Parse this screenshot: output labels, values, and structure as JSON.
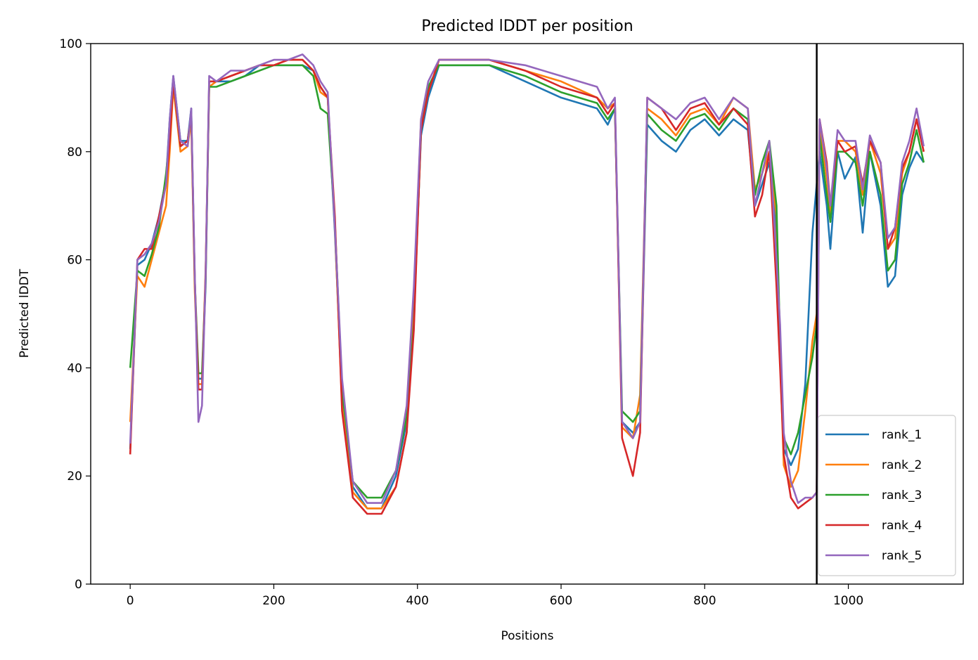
{
  "chart_data": {
    "type": "line",
    "title": "Predicted lDDT per position",
    "xlabel": "Positions",
    "ylabel": "Predicted lDDT",
    "xlim": [
      -55,
      1160
    ],
    "ylim": [
      0,
      100
    ],
    "xticks": [
      0,
      200,
      400,
      600,
      800,
      1000
    ],
    "yticks": [
      0,
      20,
      40,
      60,
      80,
      100
    ],
    "grid": false,
    "legend_position": "lower-right",
    "vertical_line_x": 956,
    "series": [
      {
        "name": "rank_1",
        "color": "#1f77b4",
        "x": [
          0,
          10,
          20,
          30,
          40,
          50,
          55,
          60,
          70,
          80,
          85,
          90,
          95,
          100,
          105,
          110,
          120,
          140,
          160,
          180,
          200,
          220,
          240,
          255,
          265,
          275,
          285,
          295,
          310,
          330,
          350,
          370,
          385,
          395,
          405,
          415,
          430,
          450,
          500,
          550,
          600,
          650,
          665,
          675,
          685,
          700,
          710,
          720,
          740,
          760,
          780,
          800,
          820,
          840,
          860,
          870,
          880,
          890,
          900,
          905,
          910,
          920,
          930,
          940,
          950,
          956,
          960,
          970,
          975,
          985,
          995,
          1010,
          1020,
          1030,
          1045,
          1055,
          1065,
          1075,
          1085,
          1095,
          1105
        ],
        "y": [
          25,
          59,
          60,
          63,
          68,
          75,
          86,
          94,
          82,
          82,
          88,
          55,
          38,
          38,
          55,
          93,
          93,
          93,
          94,
          96,
          96,
          96,
          96,
          95,
          92,
          90,
          65,
          35,
          18,
          14,
          14,
          20,
          30,
          50,
          83,
          90,
          96,
          96,
          96,
          93,
          90,
          88,
          85,
          88,
          30,
          28,
          30,
          85,
          82,
          80,
          84,
          86,
          83,
          86,
          84,
          70,
          74,
          78,
          65,
          45,
          25,
          22,
          25,
          37,
          65,
          74,
          80,
          70,
          62,
          80,
          75,
          79,
          65,
          80,
          70,
          55,
          57,
          72,
          77,
          80,
          78
        ]
      },
      {
        "name": "rank_2",
        "color": "#ff7f0e",
        "x": [
          0,
          10,
          20,
          30,
          40,
          50,
          55,
          60,
          70,
          80,
          85,
          90,
          95,
          100,
          105,
          110,
          120,
          140,
          160,
          180,
          200,
          220,
          240,
          255,
          265,
          275,
          285,
          295,
          310,
          330,
          350,
          370,
          385,
          395,
          405,
          415,
          430,
          450,
          500,
          550,
          600,
          650,
          665,
          675,
          685,
          700,
          710,
          720,
          740,
          760,
          780,
          800,
          820,
          840,
          860,
          870,
          880,
          890,
          900,
          905,
          910,
          920,
          930,
          940,
          950,
          956,
          960,
          970,
          975,
          985,
          995,
          1010,
          1020,
          1030,
          1045,
          1055,
          1065,
          1075,
          1085,
          1095,
          1105
        ],
        "y": [
          30,
          57,
          55,
          60,
          65,
          70,
          80,
          92,
          80,
          81,
          86,
          54,
          37,
          37,
          58,
          92,
          93,
          94,
          95,
          96,
          96,
          97,
          97,
          95,
          91,
          90,
          66,
          33,
          17,
          14,
          14,
          18,
          28,
          52,
          86,
          91,
          97,
          97,
          97,
          95,
          93,
          90,
          88,
          89,
          29,
          27,
          35,
          88,
          86,
          83,
          87,
          88,
          85,
          90,
          88,
          73,
          76,
          80,
          68,
          42,
          22,
          18,
          21,
          32,
          45,
          50,
          85,
          75,
          68,
          82,
          82,
          80,
          72,
          82,
          76,
          62,
          64,
          76,
          80,
          86,
          80
        ]
      },
      {
        "name": "rank_3",
        "color": "#2ca02c",
        "x": [
          0,
          10,
          20,
          30,
          40,
          50,
          55,
          60,
          70,
          80,
          85,
          90,
          95,
          100,
          105,
          110,
          120,
          140,
          160,
          180,
          200,
          220,
          240,
          255,
          265,
          275,
          285,
          295,
          310,
          330,
          350,
          370,
          385,
          395,
          405,
          415,
          430,
          450,
          500,
          550,
          600,
          650,
          665,
          675,
          685,
          700,
          710,
          720,
          740,
          760,
          780,
          800,
          820,
          840,
          860,
          870,
          880,
          890,
          900,
          905,
          910,
          920,
          930,
          940,
          950,
          956,
          960,
          970,
          975,
          985,
          995,
          1010,
          1020,
          1030,
          1045,
          1055,
          1065,
          1075,
          1085,
          1095,
          1105
        ],
        "y": [
          40,
          58,
          57,
          61,
          66,
          76,
          83,
          93,
          81,
          82,
          87,
          56,
          39,
          39,
          56,
          92,
          92,
          93,
          94,
          95,
          96,
          96,
          96,
          94,
          88,
          87,
          67,
          36,
          19,
          16,
          16,
          21,
          31,
          48,
          84,
          92,
          96,
          96,
          96,
          94,
          91,
          89,
          86,
          88,
          32,
          30,
          32,
          87,
          84,
          82,
          86,
          87,
          84,
          88,
          86,
          72,
          78,
          82,
          70,
          45,
          27,
          24,
          28,
          35,
          42,
          48,
          83,
          72,
          67,
          80,
          80,
          78,
          70,
          80,
          72,
          58,
          60,
          74,
          78,
          84,
          78
        ]
      },
      {
        "name": "rank_4",
        "color": "#d62728",
        "x": [
          0,
          10,
          20,
          30,
          40,
          50,
          55,
          60,
          70,
          80,
          85,
          90,
          95,
          100,
          105,
          110,
          120,
          140,
          160,
          180,
          200,
          220,
          240,
          255,
          265,
          275,
          285,
          295,
          310,
          330,
          350,
          370,
          385,
          395,
          405,
          415,
          430,
          450,
          500,
          550,
          600,
          650,
          665,
          675,
          685,
          700,
          710,
          720,
          740,
          760,
          780,
          800,
          820,
          840,
          860,
          870,
          880,
          890,
          900,
          905,
          910,
          920,
          930,
          940,
          950,
          956,
          960,
          970,
          975,
          985,
          995,
          1010,
          1020,
          1030,
          1045,
          1055,
          1065,
          1075,
          1085,
          1095,
          1105
        ],
        "y": [
          24,
          60,
          62,
          62,
          68,
          74,
          82,
          93,
          81,
          82,
          87,
          56,
          36,
          36,
          57,
          93,
          93,
          94,
          95,
          96,
          96,
          97,
          97,
          95,
          92,
          90,
          68,
          32,
          16,
          13,
          13,
          18,
          28,
          47,
          84,
          91,
          97,
          97,
          97,
          95,
          92,
          90,
          87,
          89,
          27,
          20,
          28,
          90,
          88,
          84,
          88,
          89,
          85,
          88,
          85,
          68,
          72,
          80,
          55,
          40,
          24,
          16,
          14,
          15,
          16,
          17,
          86,
          78,
          70,
          82,
          80,
          81,
          74,
          82,
          78,
          62,
          66,
          77,
          80,
          86,
          80
        ]
      },
      {
        "name": "rank_5",
        "color": "#9467bd",
        "x": [
          0,
          10,
          20,
          30,
          40,
          50,
          55,
          60,
          70,
          80,
          85,
          90,
          95,
          100,
          105,
          110,
          120,
          140,
          160,
          180,
          200,
          220,
          240,
          255,
          265,
          275,
          285,
          295,
          310,
          330,
          350,
          370,
          385,
          395,
          405,
          415,
          430,
          450,
          500,
          550,
          600,
          650,
          665,
          675,
          685,
          700,
          710,
          720,
          740,
          760,
          780,
          800,
          820,
          840,
          860,
          870,
          880,
          890,
          900,
          905,
          910,
          920,
          930,
          940,
          950,
          956,
          960,
          970,
          975,
          985,
          995,
          1010,
          1020,
          1030,
          1045,
          1055,
          1065,
          1075,
          1085,
          1095,
          1105
        ],
        "y": [
          26,
          60,
          61,
          63,
          67,
          74,
          86,
          94,
          82,
          81,
          88,
          57,
          30,
          33,
          57,
          94,
          93,
          95,
          95,
          96,
          97,
          97,
          98,
          96,
          93,
          91,
          66,
          38,
          19,
          15,
          15,
          21,
          33,
          55,
          86,
          93,
          97,
          97,
          97,
          96,
          94,
          92,
          88,
          90,
          30,
          27,
          30,
          90,
          88,
          86,
          89,
          90,
          86,
          90,
          88,
          70,
          76,
          82,
          60,
          48,
          28,
          19,
          15,
          16,
          16,
          17,
          86,
          77,
          70,
          84,
          82,
          82,
          73,
          83,
          78,
          64,
          66,
          78,
          82,
          88,
          81
        ]
      }
    ]
  }
}
